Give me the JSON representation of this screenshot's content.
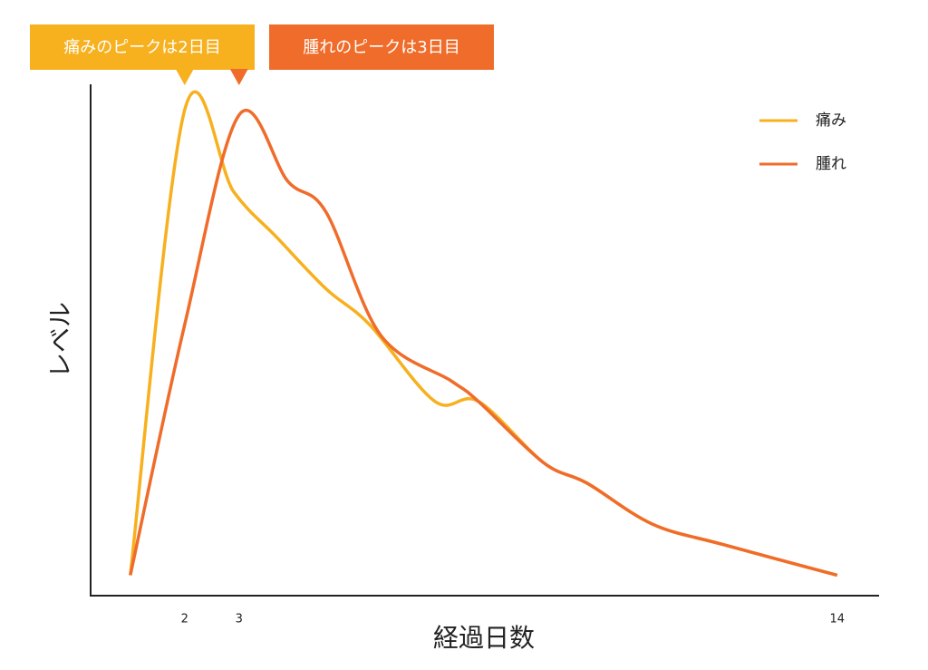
{
  "chart_data": {
    "type": "line",
    "x_label": "経過日数",
    "y_label": "レベル",
    "annotations": [
      "痛みのピークは2日目",
      "腫れのピークは3日目"
    ],
    "xlim": [
      0.27,
      14.77
    ],
    "ylim": [
      0,
      100
    ],
    "xticks": [
      2,
      3,
      14
    ],
    "legend": "top-right",
    "series": [
      {
        "name": "痛み",
        "color": "#f7b01e",
        "x": [
          1,
          2,
          2.9,
          3.7,
          4.6,
          5.4,
          6.6,
          7.4,
          8.6,
          9.4,
          10.6,
          11.9,
          14
        ],
        "values": [
          4,
          95,
          79,
          70,
          60,
          53,
          38,
          38,
          26,
          22,
          14,
          10,
          4
        ]
      },
      {
        "name": "腫れ",
        "color": "#ef6c2a",
        "x": [
          1,
          2,
          3,
          3.9,
          4.6,
          5.6,
          6.9,
          7.4,
          8.6,
          9.4,
          10.6,
          11.9,
          14
        ],
        "values": [
          4,
          53,
          94,
          81,
          75,
          51,
          42,
          38,
          26,
          22,
          14,
          10,
          4
        ]
      }
    ]
  }
}
